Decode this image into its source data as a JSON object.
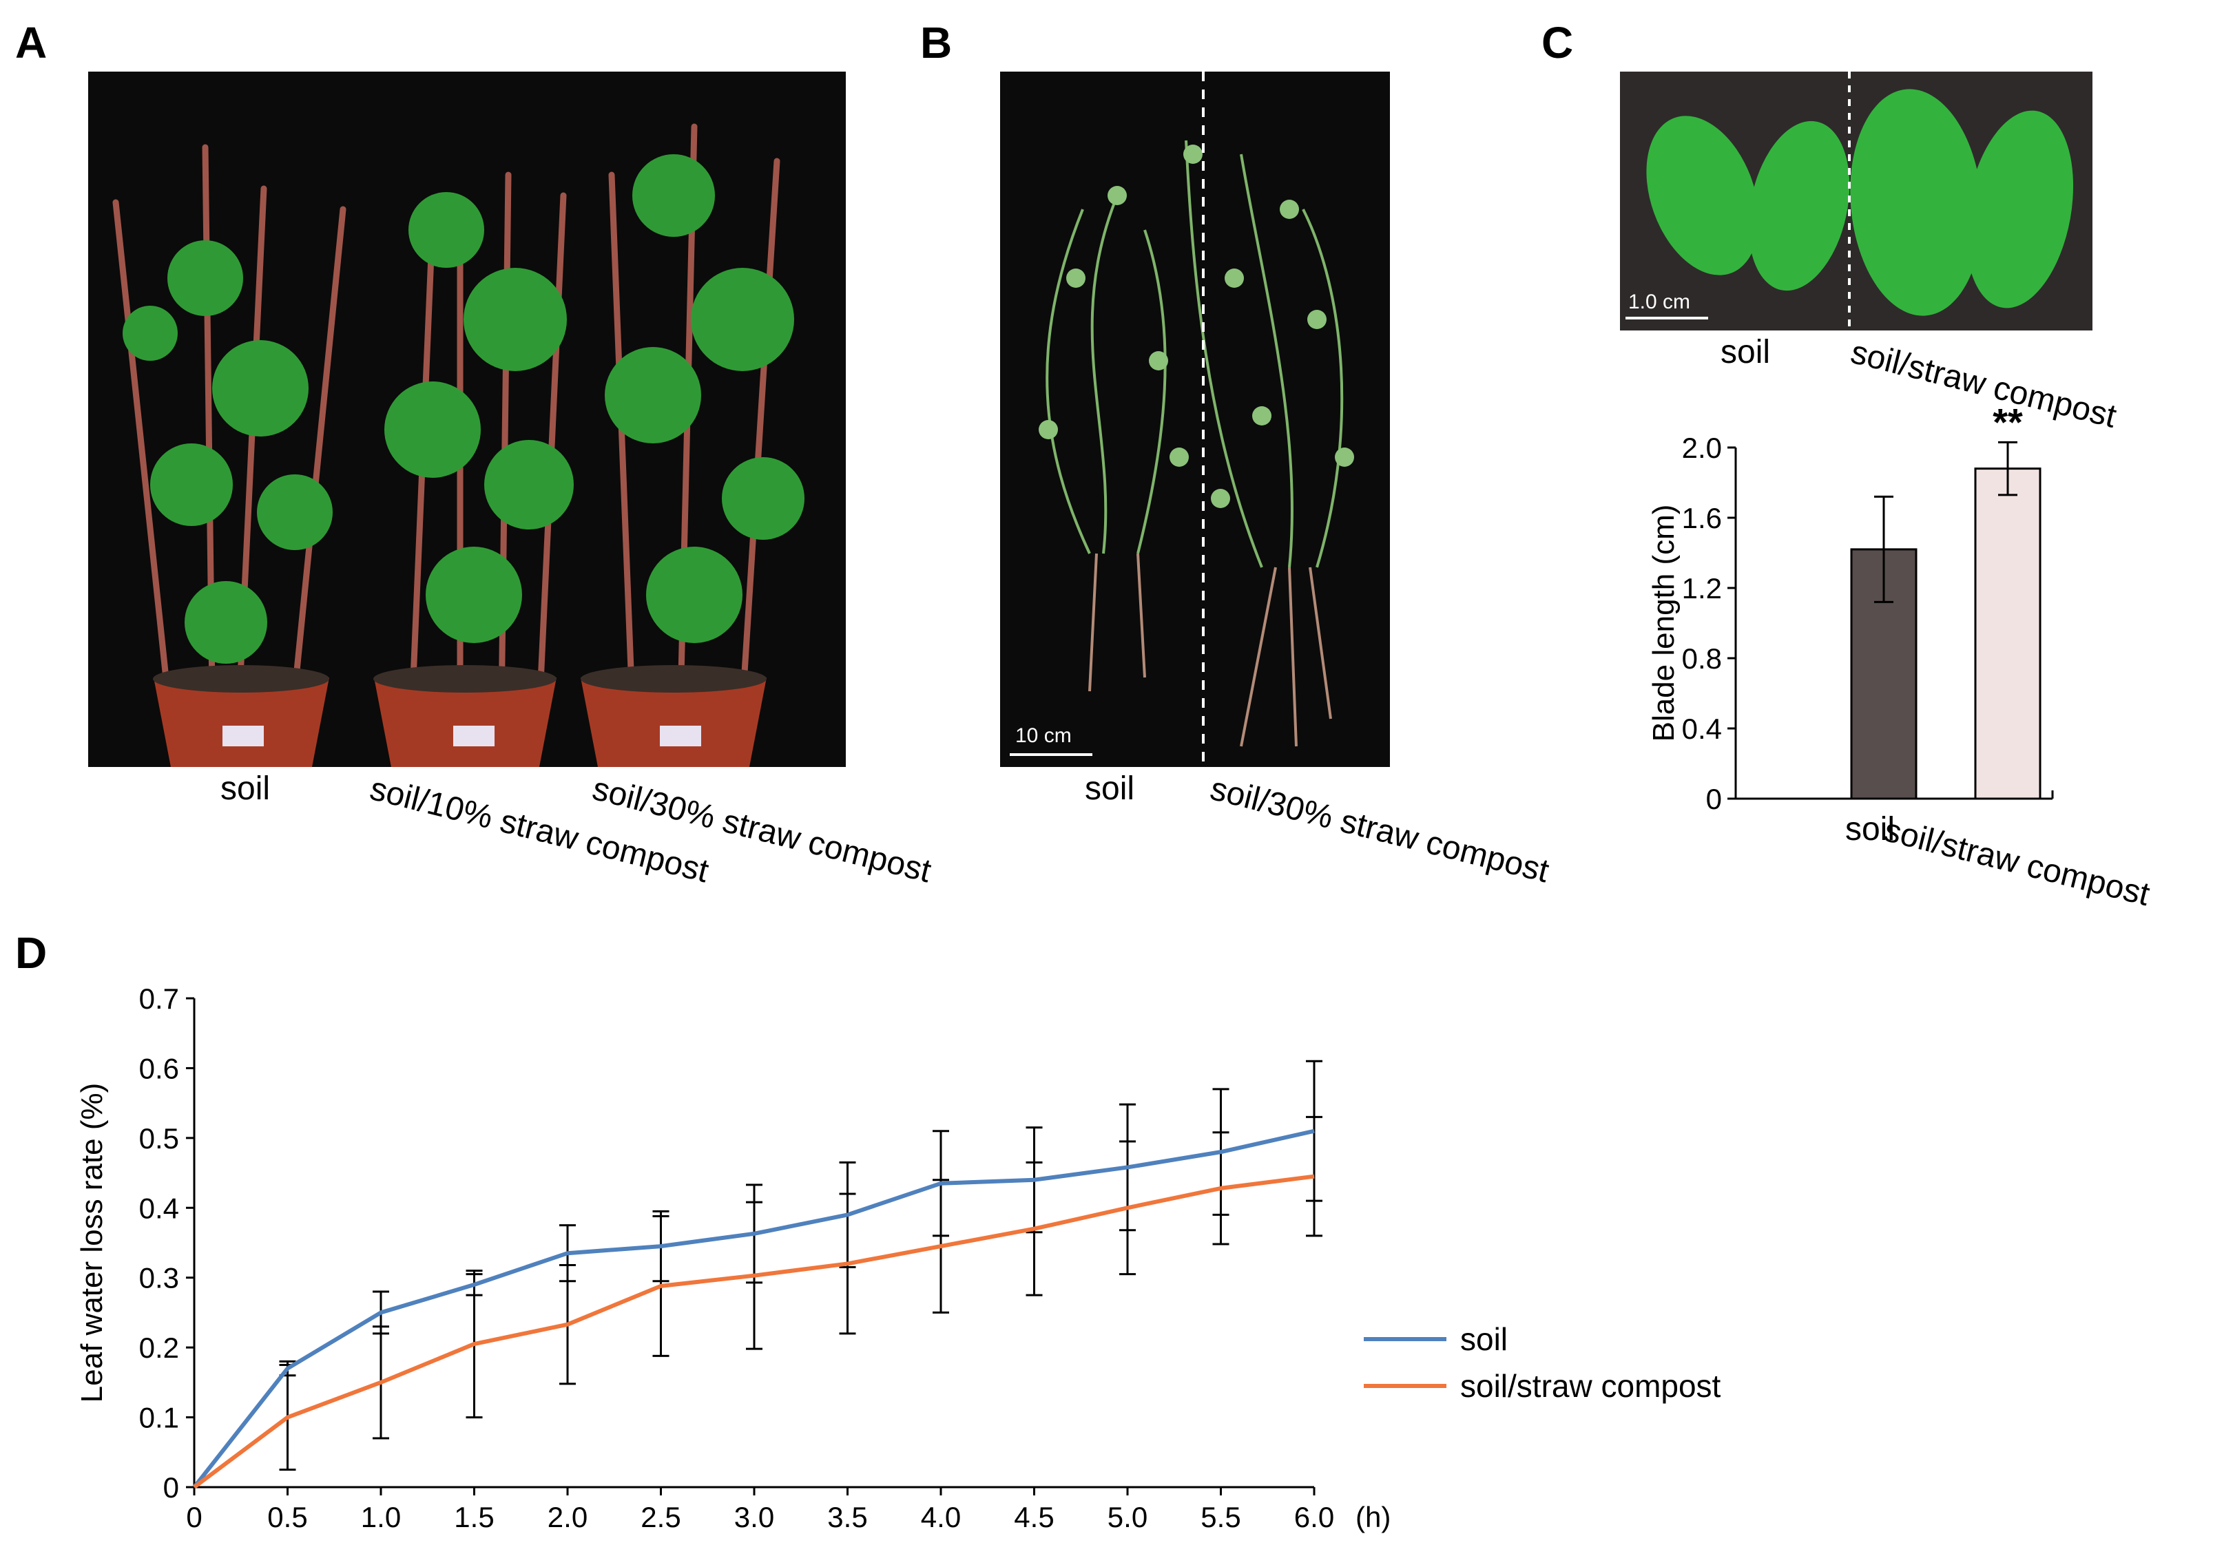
{
  "panels": {
    "a": "A",
    "b": "B",
    "c": "C",
    "d": "D"
  },
  "panel_a": {
    "captions": [
      "soil",
      "soil/10% straw compost",
      "soil/30% straw compost"
    ]
  },
  "panel_b": {
    "scale_label": "10 cm",
    "captions": [
      "soil",
      "soil/30% straw compost"
    ]
  },
  "panel_c_photo": {
    "scale_label": "1.0 cm",
    "captions": [
      "soil",
      "soil/straw compost"
    ]
  },
  "chart_data": [
    {
      "type": "bar",
      "categories": [
        "soil",
        "soil/straw compost"
      ],
      "values": [
        1.42,
        1.88
      ],
      "errors": [
        0.3,
        0.15
      ],
      "bar_colors": [
        "#574e4d",
        "#f2e3e3"
      ],
      "significance": [
        "",
        "**"
      ],
      "title": "",
      "xlabel": "",
      "ylabel": "Blade length (cm)",
      "ylim": [
        0,
        2.0
      ],
      "yticks": [
        "0",
        "0.4",
        "0.8",
        "1.2",
        "1.6",
        "2.0"
      ],
      "grid": false
    },
    {
      "type": "line",
      "x": [
        0,
        0.5,
        1.0,
        1.5,
        2.0,
        2.5,
        3.0,
        3.5,
        4.0,
        4.5,
        5.0,
        5.5,
        6.0
      ],
      "xticks": [
        "0",
        "0.5",
        "1.0",
        "1.5",
        "2.0",
        "2.5",
        "3.0",
        "3.5",
        "4.0",
        "4.5",
        "5.0",
        "5.5",
        "6.0"
      ],
      "xunit": "(h)",
      "series": [
        {
          "name": "soil",
          "color": "#4f81bd",
          "values": [
            0,
            0.17,
            0.25,
            0.29,
            0.335,
            0.345,
            0.363,
            0.39,
            0.435,
            0.44,
            0.458,
            0.48,
            0.51
          ],
          "errors": [
            0,
            0.01,
            0.03,
            0.015,
            0.04,
            0.05,
            0.07,
            0.075,
            0.075,
            0.075,
            0.09,
            0.09,
            0.1
          ]
        },
        {
          "name": "soil/straw compost",
          "color": "#f0763b",
          "values": [
            0,
            0.1,
            0.15,
            0.205,
            0.233,
            0.288,
            0.303,
            0.32,
            0.345,
            0.37,
            0.4,
            0.428,
            0.445
          ],
          "errors": [
            0,
            0.075,
            0.08,
            0.105,
            0.085,
            0.1,
            0.105,
            0.1,
            0.095,
            0.095,
            0.095,
            0.08,
            0.085
          ]
        }
      ],
      "title": "",
      "xlabel": "",
      "ylabel": "Leaf water loss rate (%)",
      "ylim": [
        0,
        0.7
      ],
      "yticks": [
        "0",
        "0.1",
        "0.2",
        "0.3",
        "0.4",
        "0.5",
        "0.6",
        "0.7"
      ],
      "legend_position": "right",
      "grid": false
    }
  ]
}
